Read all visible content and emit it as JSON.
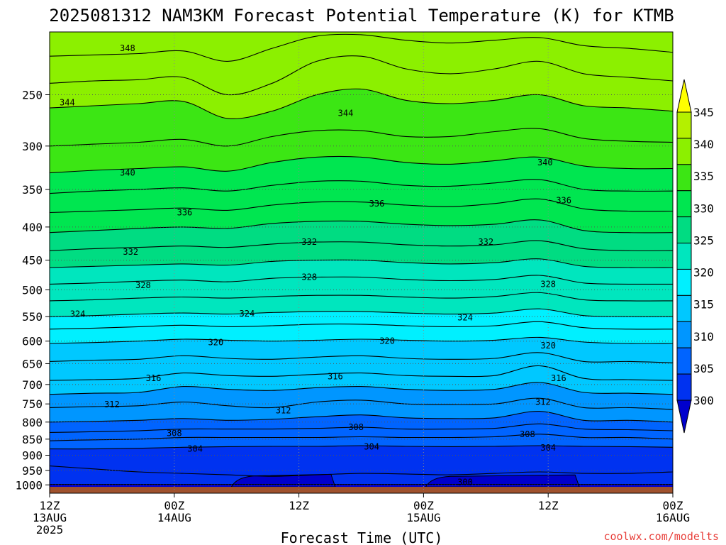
{
  "chart_data": {
    "type": "heatmap",
    "title": "2025081312 NAM3KM Forecast Potential Temperature (K) for KTMB",
    "xlabel": "Forecast Time (UTC)",
    "ylabel": "",
    "y_axis_log_pressure": true,
    "ylim": [
      1030,
      200
    ],
    "xlim_hours": [
      0,
      60
    ],
    "x_ticks": [
      {
        "hour": 0,
        "lines": [
          "12Z",
          "13AUG",
          "2025"
        ]
      },
      {
        "hour": 12,
        "lines": [
          "00Z",
          "14AUG"
        ]
      },
      {
        "hour": 24,
        "lines": [
          "12Z"
        ]
      },
      {
        "hour": 36,
        "lines": [
          "00Z",
          "15AUG"
        ]
      },
      {
        "hour": 48,
        "lines": [
          "12Z"
        ]
      },
      {
        "hour": 60,
        "lines": [
          "00Z",
          "16AUG"
        ]
      }
    ],
    "y_ticks": [
      250,
      300,
      350,
      400,
      450,
      500,
      550,
      600,
      650,
      700,
      750,
      800,
      850,
      900,
      950,
      1000
    ],
    "colorbar": {
      "levels": [
        300,
        305,
        310,
        315,
        320,
        325,
        330,
        335,
        340,
        345
      ],
      "labels": [
        "345",
        "340",
        "335",
        "330",
        "325",
        "320",
        "315",
        "310",
        "305",
        "300"
      ],
      "colors": [
        "#0000cd",
        "#0032f0",
        "#0064ff",
        "#0096ff",
        "#00c8ff",
        "#00f0ff",
        "#00e6be",
        "#00dc82",
        "#00e650",
        "#3ce614",
        "#8cf000",
        "#b4f000",
        "#ffff00"
      ],
      "extend": "both"
    },
    "contour_interval": 2,
    "contours": [
      {
        "theta": 300,
        "p": [
          998,
          998,
          998,
          998,
          998,
          998,
          998,
          998,
          998,
          998,
          998,
          998,
          998,
          998,
          998
        ]
      },
      {
        "theta": 302,
        "p": [
          935,
          945,
          955,
          960,
          965,
          970,
          965,
          960,
          962,
          965,
          960,
          955,
          960,
          960,
          955
        ]
      },
      {
        "theta": 304,
        "p": [
          880,
          880,
          878,
          875,
          873,
          872,
          872,
          870,
          872,
          873,
          872,
          870,
          872,
          873,
          875
        ]
      },
      {
        "theta": 306,
        "p": [
          855,
          852,
          850,
          845,
          845,
          845,
          845,
          843,
          845,
          845,
          843,
          835,
          845,
          845,
          850
        ]
      },
      {
        "theta": 308,
        "p": [
          830,
          828,
          825,
          820,
          820,
          820,
          818,
          815,
          820,
          820,
          818,
          805,
          820,
          822,
          825
        ]
      },
      {
        "theta": 310,
        "p": [
          800,
          798,
          795,
          790,
          795,
          792,
          785,
          780,
          788,
          790,
          788,
          770,
          795,
          795,
          800
        ]
      },
      {
        "theta": 312,
        "p": [
          760,
          757,
          755,
          745,
          755,
          760,
          745,
          740,
          750,
          752,
          750,
          735,
          760,
          760,
          765
        ]
      },
      {
        "theta": 314,
        "p": [
          725,
          722,
          720,
          705,
          712,
          715,
          708,
          705,
          712,
          715,
          712,
          695,
          720,
          722,
          725
        ]
      },
      {
        "theta": 316,
        "p": [
          690,
          688,
          685,
          672,
          678,
          680,
          675,
          672,
          678,
          680,
          678,
          655,
          685,
          688,
          690
        ]
      },
      {
        "theta": 318,
        "p": [
          645,
          642,
          640,
          632,
          638,
          640,
          635,
          632,
          638,
          640,
          638,
          625,
          645,
          645,
          648
        ]
      },
      {
        "theta": 320,
        "p": [
          605,
          603,
          600,
          596,
          598,
          600,
          598,
          596,
          598,
          600,
          598,
          592,
          602,
          605,
          605
        ]
      },
      {
        "theta": 322,
        "p": [
          575,
          573,
          570,
          567,
          570,
          568,
          565,
          565,
          568,
          570,
          568,
          560,
          572,
          575,
          575
        ]
      },
      {
        "theta": 324,
        "p": [
          550,
          548,
          545,
          543,
          545,
          542,
          540,
          540,
          543,
          545,
          543,
          535,
          548,
          550,
          550
        ]
      },
      {
        "theta": 326,
        "p": [
          520,
          518,
          515,
          513,
          515,
          512,
          510,
          510,
          513,
          515,
          512,
          505,
          518,
          520,
          520
        ]
      },
      {
        "theta": 328,
        "p": [
          490,
          488,
          485,
          483,
          486,
          480,
          478,
          478,
          482,
          484,
          482,
          475,
          488,
          490,
          490
        ]
      },
      {
        "theta": 330,
        "p": [
          462,
          460,
          458,
          456,
          458,
          452,
          450,
          450,
          454,
          456,
          454,
          448,
          460,
          462,
          462
        ]
      },
      {
        "theta": 332,
        "p": [
          435,
          432,
          430,
          428,
          430,
          425,
          422,
          422,
          426,
          428,
          426,
          420,
          432,
          435,
          435
        ]
      },
      {
        "theta": 334,
        "p": [
          408,
          405,
          402,
          400,
          402,
          395,
          392,
          392,
          396,
          398,
          396,
          390,
          405,
          408,
          408
        ]
      },
      {
        "theta": 336,
        "p": [
          380,
          378,
          376,
          374,
          377,
          370,
          366,
          366,
          370,
          372,
          368,
          362,
          375,
          378,
          378
        ]
      },
      {
        "theta": 338,
        "p": [
          355,
          352,
          350,
          348,
          352,
          345,
          340,
          340,
          345,
          346,
          342,
          338,
          350,
          352,
          352
        ]
      },
      {
        "theta": 340,
        "p": [
          330,
          327,
          325,
          323,
          328,
          318,
          312,
          312,
          318,
          320,
          316,
          312,
          322,
          325,
          325
        ]
      },
      {
        "theta": 342,
        "p": [
          300,
          298,
          296,
          293,
          300,
          290,
          284,
          284,
          290,
          290,
          285,
          282,
          292,
          295,
          296
        ]
      },
      {
        "theta": 344,
        "p": [
          262,
          260,
          258,
          256,
          272,
          265,
          250,
          245,
          255,
          258,
          255,
          250,
          260,
          262,
          265
        ]
      },
      {
        "theta": 346,
        "p": [
          240,
          238,
          237,
          235,
          250,
          240,
          222,
          218,
          228,
          232,
          228,
          222,
          232,
          235,
          238
        ]
      },
      {
        "theta": 348,
        "p": [
          218,
          217,
          216,
          214,
          222,
          212,
          203,
          202,
          206,
          208,
          206,
          204,
          210,
          212,
          215
        ]
      }
    ],
    "contour_labels": [
      {
        "text": "348",
        "hour": 7.5,
        "p": 212
      },
      {
        "text": "344",
        "hour": 1.7,
        "p": 257
      },
      {
        "text": "344",
        "hour": 28.5,
        "p": 267
      },
      {
        "text": "340",
        "hour": 7.5,
        "p": 330
      },
      {
        "text": "340",
        "hour": 47.7,
        "p": 318
      },
      {
        "text": "336",
        "hour": 13.0,
        "p": 380
      },
      {
        "text": "336",
        "hour": 31.5,
        "p": 368
      },
      {
        "text": "336",
        "hour": 49.5,
        "p": 364
      },
      {
        "text": "332",
        "hour": 7.8,
        "p": 437
      },
      {
        "text": "332",
        "hour": 25.0,
        "p": 422
      },
      {
        "text": "332",
        "hour": 42.0,
        "p": 422
      },
      {
        "text": "328",
        "hour": 9.0,
        "p": 492
      },
      {
        "text": "328",
        "hour": 25.0,
        "p": 478
      },
      {
        "text": "328",
        "hour": 48.0,
        "p": 490
      },
      {
        "text": "324",
        "hour": 2.7,
        "p": 545
      },
      {
        "text": "324",
        "hour": 19.0,
        "p": 544
      },
      {
        "text": "324",
        "hour": 40.0,
        "p": 552
      },
      {
        "text": "320",
        "hour": 16.0,
        "p": 603
      },
      {
        "text": "320",
        "hour": 32.5,
        "p": 600
      },
      {
        "text": "320",
        "hour": 48.0,
        "p": 610
      },
      {
        "text": "316",
        "hour": 10.0,
        "p": 685
      },
      {
        "text": "316",
        "hour": 27.5,
        "p": 680
      },
      {
        "text": "316",
        "hour": 49.0,
        "p": 685
      },
      {
        "text": "312",
        "hour": 6.0,
        "p": 752
      },
      {
        "text": "312",
        "hour": 22.5,
        "p": 768
      },
      {
        "text": "312",
        "hour": 47.5,
        "p": 745
      },
      {
        "text": "308",
        "hour": 12.0,
        "p": 832
      },
      {
        "text": "308",
        "hour": 29.5,
        "p": 815
      },
      {
        "text": "308",
        "hour": 46.0,
        "p": 835
      },
      {
        "text": "304",
        "hour": 14.0,
        "p": 880
      },
      {
        "text": "304",
        "hour": 31.0,
        "p": 873
      },
      {
        "text": "304",
        "hour": 48.0,
        "p": 876
      },
      {
        "text": "300",
        "hour": 40.0,
        "p": 990
      }
    ],
    "cold_pools_below_300": [
      {
        "h0": 17.5,
        "h1": 27.5,
        "p_top": 968
      },
      {
        "h0": 36.2,
        "h1": 51.0,
        "p_top": 970
      }
    ],
    "ground": {
      "color": "#a0522d",
      "p_top": 1007
    }
  },
  "watermark": "coolwx.com/modelts"
}
